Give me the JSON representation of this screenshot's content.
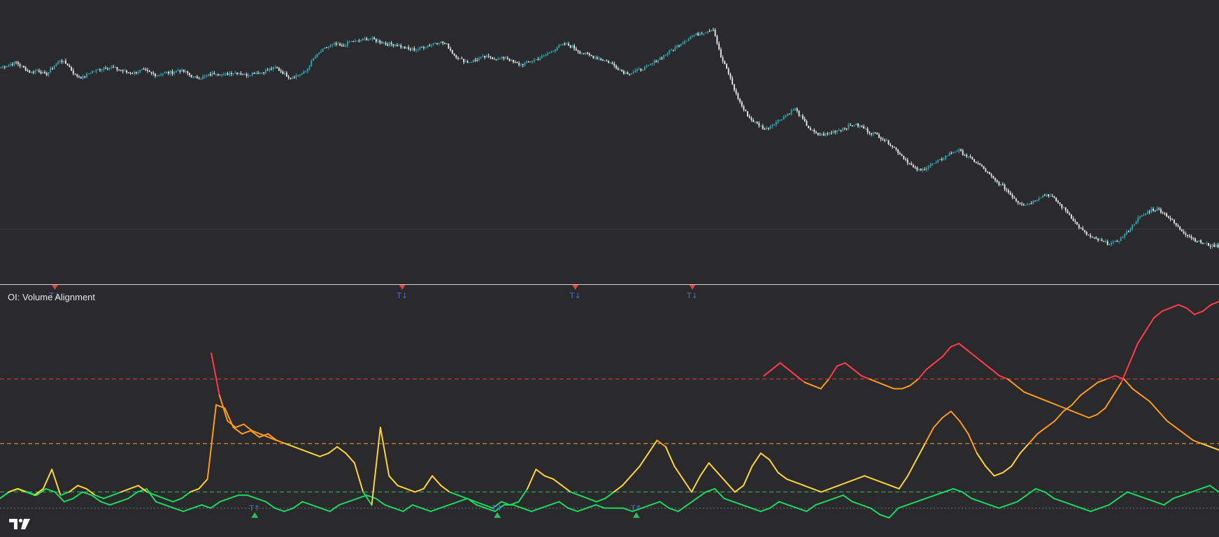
{
  "colors": {
    "background": "#2a2a2c",
    "candle_up": "#26a6b8",
    "candle_down": "#e8e8e8",
    "grid": "#3a3a3c",
    "divider": "#cfcfcf",
    "level_high": "#e0413f",
    "level_mid": "#f2a324",
    "level_low": "#2fbf59",
    "baseline": "#6c6c6c",
    "marker_down": "#e0413f",
    "marker_up": "#2fbf59",
    "marker_label": "#4a6bd8",
    "line_green": "#1ed760",
    "line_yellow": "#ffd23a",
    "line_orange": "#ff9a1f",
    "line_red": "#ff3b4a"
  },
  "indicator": {
    "title": "OI: Volume Alignment",
    "levels": [
      {
        "name": "high",
        "value": 75
      },
      {
        "name": "mid",
        "value": 55
      },
      {
        "name": "low",
        "value": 40
      },
      {
        "name": "base",
        "value": 35
      }
    ],
    "markers": [
      {
        "bar": 0.045,
        "direction": "down",
        "label": "T↓"
      },
      {
        "bar": 0.33,
        "direction": "down",
        "label": "T↓"
      },
      {
        "bar": 0.472,
        "direction": "down",
        "label": "T↓"
      },
      {
        "bar": 0.568,
        "direction": "down",
        "label": "T↓"
      },
      {
        "bar": 0.209,
        "direction": "up",
        "label": "T↑"
      },
      {
        "bar": 0.408,
        "direction": "up",
        "label": "T↑"
      },
      {
        "bar": 0.522,
        "direction": "up",
        "label": "T↑"
      }
    ]
  },
  "icons": {
    "logo": "tradingview-logo"
  },
  "chart_data": [
    {
      "type": "candlestick",
      "title": "",
      "ylim": [
        0,
        100
      ],
      "grid": false,
      "series": [
        {
          "values": [
            82,
            83,
            84,
            82,
            80,
            81,
            79,
            82,
            85,
            83,
            79,
            78,
            80,
            81,
            82,
            82,
            81,
            80,
            80,
            81,
            80,
            79,
            80,
            80,
            81,
            80,
            78,
            78,
            79,
            80,
            79,
            80,
            80,
            79,
            80,
            80,
            81,
            82,
            80,
            78,
            79,
            80,
            85,
            88,
            90,
            91,
            90,
            92,
            92,
            93,
            93,
            92,
            91,
            91,
            90,
            89,
            89,
            90,
            91,
            92,
            91,
            87,
            85,
            84,
            85,
            86,
            86,
            85,
            86,
            84,
            83,
            84,
            85,
            86,
            88,
            90,
            91,
            90,
            88,
            87,
            86,
            85,
            84,
            82,
            80,
            80,
            81,
            82,
            84,
            86,
            88,
            90,
            92,
            94,
            95,
            96,
            97,
            86,
            80,
            72,
            66,
            62,
            60,
            58,
            60,
            62,
            64,
            66,
            62,
            58,
            56,
            56,
            57,
            58,
            59,
            60,
            59,
            57,
            56,
            54,
            52,
            49,
            46,
            43,
            42,
            44,
            45,
            47,
            49,
            50,
            48,
            46,
            44,
            41,
            38,
            36,
            33,
            30,
            29,
            30,
            32,
            33,
            31,
            28,
            25,
            21,
            18,
            16,
            15,
            14,
            14,
            16,
            19,
            23,
            25,
            27,
            27,
            25,
            22,
            19,
            17,
            15,
            14,
            13,
            13
          ]
        }
      ]
    },
    {
      "type": "line",
      "title": "OI: Volume Alignment",
      "ylim": [
        28,
        102
      ],
      "grid": false,
      "series": [
        {
          "values": [
            38,
            40,
            41,
            40,
            39,
            41,
            40,
            37,
            38,
            40,
            39,
            37,
            36,
            37,
            38,
            40,
            41,
            37,
            36,
            35,
            34,
            35,
            36,
            35,
            37,
            38,
            39,
            39,
            38,
            37,
            35,
            34,
            35,
            37,
            36,
            35,
            34,
            36,
            37,
            38,
            39,
            38,
            36,
            35,
            34,
            36,
            35,
            34,
            35,
            36,
            37,
            38,
            36,
            35,
            34,
            36,
            36,
            35,
            34,
            35,
            36,
            37,
            35,
            34,
            35,
            36,
            35,
            35,
            35,
            34,
            35,
            36,
            37,
            35,
            34,
            36,
            38,
            40,
            41,
            38,
            37,
            36,
            35,
            34,
            35,
            37,
            36,
            35,
            34,
            36,
            37,
            38,
            39,
            37,
            36,
            35,
            33,
            32,
            35,
            36,
            37,
            38,
            39,
            40,
            41,
            40,
            38,
            37,
            36,
            35,
            36,
            37,
            39,
            41,
            40,
            38,
            37,
            36,
            35,
            34,
            35,
            36,
            38,
            40,
            39,
            38,
            37,
            36,
            38,
            39,
            40,
            41,
            42,
            40
          ]
        },
        {
          "values": [
            38,
            40,
            41,
            40,
            39,
            41,
            47,
            39,
            40,
            42,
            41,
            39,
            38,
            39,
            40,
            41,
            42,
            40,
            39,
            38,
            37,
            38,
            40,
            41,
            44,
            67,
            66,
            60,
            58,
            59,
            57,
            58,
            56,
            55,
            54,
            53,
            52,
            51,
            52,
            54,
            52,
            49,
            40,
            36,
            60,
            45,
            42,
            41,
            40,
            41,
            45,
            42,
            40,
            39,
            38,
            37,
            36,
            35,
            37,
            36,
            37,
            41,
            47,
            45,
            44,
            42,
            40,
            39,
            38,
            37,
            38,
            40,
            42,
            45,
            48,
            52,
            56,
            54,
            48,
            44,
            40,
            45,
            49,
            46,
            43,
            40,
            42,
            48,
            52,
            50,
            46,
            44,
            43,
            42,
            41,
            40,
            41,
            42,
            43,
            44,
            45,
            44,
            43,
            42,
            41,
            45,
            50,
            55,
            60,
            63,
            65,
            62,
            58,
            52,
            48,
            45,
            46,
            48,
            52,
            55,
            58,
            60,
            62,
            65,
            67,
            70,
            72,
            74,
            75,
            76,
            75,
            72,
            70,
            68,
            65,
            62,
            60,
            58,
            56,
            55,
            54,
            53
          ]
        },
        {
          "values": [
            null,
            null,
            null,
            null,
            null,
            null,
            null,
            null,
            null,
            null,
            null,
            null,
            null,
            null,
            null,
            null,
            null,
            null,
            null,
            null,
            null,
            null,
            null,
            null,
            null,
            null,
            83,
            70,
            62,
            60,
            61,
            59,
            58,
            57,
            56,
            null,
            null,
            null,
            null,
            null,
            null,
            null,
            null,
            null,
            null,
            null,
            null,
            null,
            null,
            null,
            null,
            null,
            null,
            null,
            null,
            null,
            null,
            null,
            null,
            null,
            null,
            null,
            null,
            null,
            null,
            null,
            null,
            null,
            null,
            null,
            null,
            null,
            null,
            null,
            null,
            null,
            null,
            null,
            null,
            null,
            null,
            null,
            null,
            null,
            null,
            null,
            null,
            null,
            null,
            null,
            null,
            null,
            null,
            null,
            76,
            78,
            80,
            78,
            76,
            74,
            73,
            72,
            75,
            79,
            80,
            78,
            76,
            75,
            74,
            73,
            72,
            72,
            73,
            75,
            78,
            80,
            82,
            85,
            86,
            84,
            82,
            80,
            78,
            76,
            75,
            73,
            71,
            70,
            69,
            68,
            67,
            66,
            65,
            64,
            63,
            64,
            66,
            70,
            74,
            80,
            86,
            90,
            94,
            96,
            97,
            98,
            97,
            95,
            96,
            98,
            99
          ]
        }
      ]
    }
  ]
}
